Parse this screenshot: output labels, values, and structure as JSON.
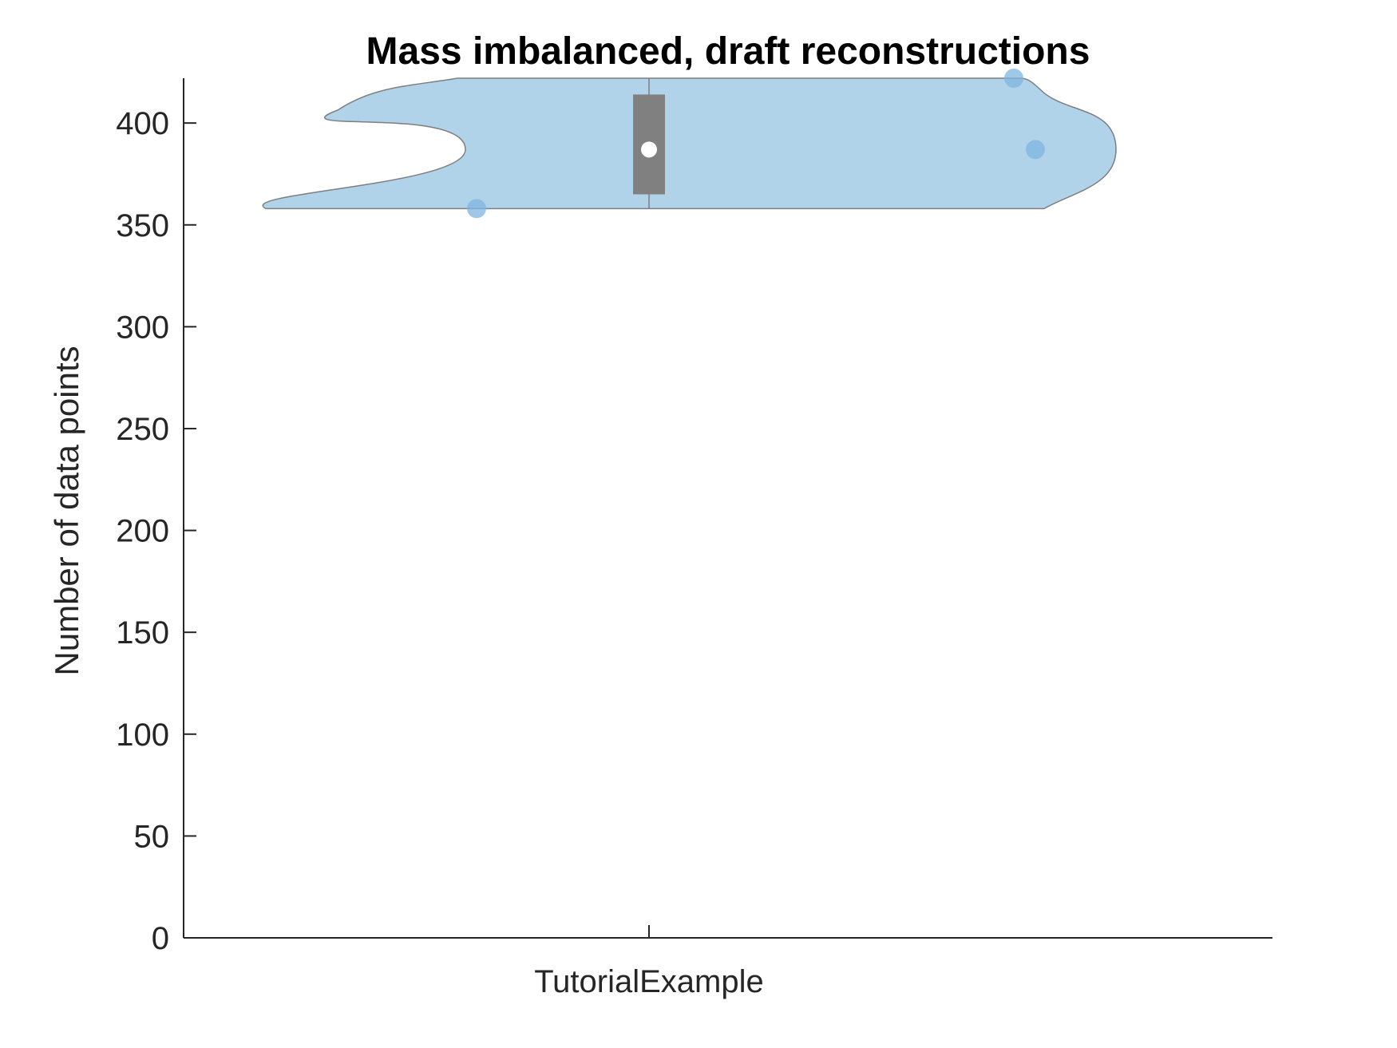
{
  "chart_data": {
    "type": "violin",
    "title": "Mass imbalanced, draft reconstructions",
    "xlabel": "",
    "ylabel": "Number of data points",
    "categories": [
      "TutorialExample"
    ],
    "ylim": [
      0,
      422
    ],
    "yticks": [
      0,
      50,
      100,
      150,
      200,
      250,
      300,
      350,
      400
    ],
    "grid": false,
    "violins": [
      {
        "category": "TutorialExample",
        "min": 358,
        "max": 422,
        "q1": 365,
        "median": 387,
        "q3": 414,
        "points": [
          358,
          422,
          387
        ],
        "color": "#b0d3ea",
        "point_color": "#7fb6e0",
        "box_color": "#808080"
      }
    ]
  }
}
